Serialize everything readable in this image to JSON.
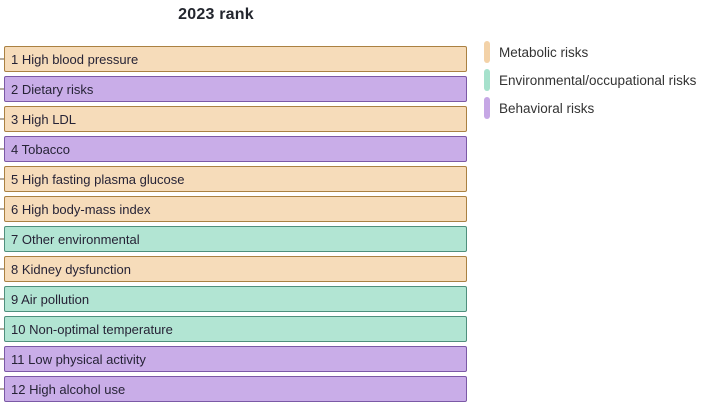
{
  "title": "2023 rank",
  "legend": {
    "items": [
      {
        "label": "Metabolic risks",
        "group": "metabolic"
      },
      {
        "label": "Environmental/occupational risks",
        "group": "environmental"
      },
      {
        "label": "Behavioral risks",
        "group": "behavioral"
      }
    ]
  },
  "colors": {
    "metabolic_fill": "#f6dcba",
    "metabolic_border": "#aa8142",
    "environmental_fill": "#b2e5d3",
    "environmental_border": "#4f8f7d",
    "behavioral_fill": "#c9ade8",
    "behavioral_border": "#7b59a6"
  },
  "chart_data": {
    "type": "bar",
    "orientation": "horizontal",
    "title": "2023 rank",
    "legend_entries": [
      "Metabolic risks",
      "Environmental/occupational risks",
      "Behavioral risks"
    ],
    "legend_position": "right",
    "bars": [
      {
        "rank": 1,
        "label": "High blood pressure",
        "display": "1 High blood pressure",
        "group": "metabolic"
      },
      {
        "rank": 2,
        "label": "Dietary risks",
        "display": "2 Dietary risks",
        "group": "behavioral"
      },
      {
        "rank": 3,
        "label": "High LDL",
        "display": "3 High LDL",
        "group": "metabolic"
      },
      {
        "rank": 4,
        "label": "Tobacco",
        "display": "4 Tobacco",
        "group": "behavioral"
      },
      {
        "rank": 5,
        "label": "High fasting plasma glucose",
        "display": "5 High fasting plasma glucose",
        "group": "metabolic"
      },
      {
        "rank": 6,
        "label": "High body-mass index",
        "display": "6 High body-mass index",
        "group": "metabolic"
      },
      {
        "rank": 7,
        "label": "Other environmental",
        "display": "7 Other environmental",
        "group": "environmental"
      },
      {
        "rank": 8,
        "label": "Kidney dysfunction",
        "display": "8 Kidney dysfunction",
        "group": "metabolic"
      },
      {
        "rank": 9,
        "label": "Air pollution",
        "display": "9 Air pollution",
        "group": "environmental"
      },
      {
        "rank": 10,
        "label": "Non-optimal temperature",
        "display": "10 Non-optimal temperature",
        "group": "environmental"
      },
      {
        "rank": 11,
        "label": "Low physical activity",
        "display": "11 Low physical activity",
        "group": "behavioral"
      },
      {
        "rank": 12,
        "label": "High alcohol use",
        "display": "12 High alcohol use",
        "group": "behavioral"
      }
    ]
  }
}
